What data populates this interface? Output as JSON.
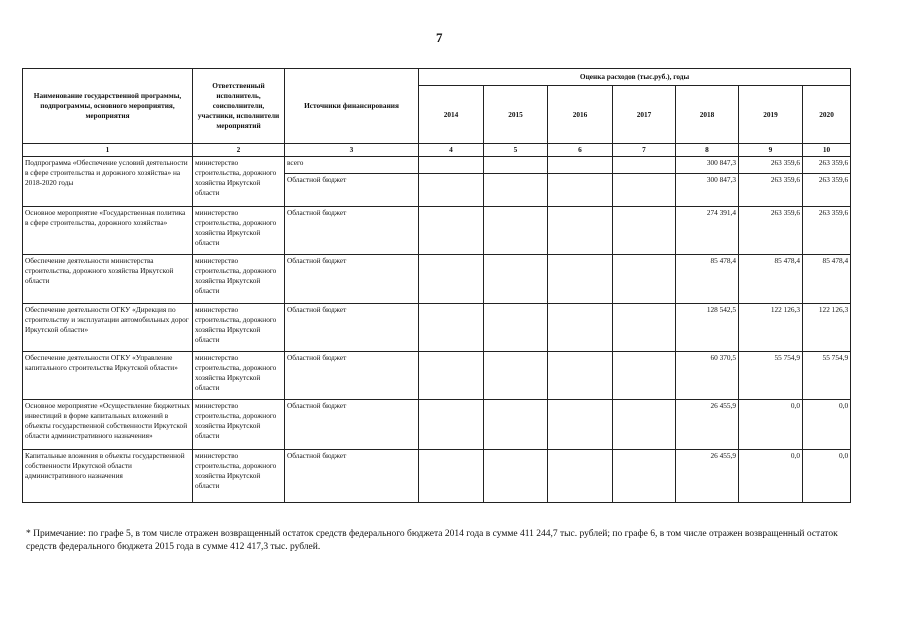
{
  "page_number": "7",
  "header": {
    "col1": "Наименование государственной программы, подпрограммы, основного мероприятия, мероприятия",
    "col2": "Ответственный исполнитель, соисполнители, участники, исполнители мероприятий",
    "col3": "Источники финансирования",
    "expenses": "Оценка расходов (тыс.руб.), годы",
    "years": [
      "2014",
      "2015",
      "2016",
      "2017",
      "2018",
      "2019",
      "2020"
    ],
    "numbers": [
      "1",
      "2",
      "3",
      "4",
      "5",
      "6",
      "7",
      "8",
      "9",
      "10"
    ]
  },
  "rows": [
    {
      "name": "Подпрограмма «Обеспечение условий деятельности в сфере строительства и дорожного хозяйства» на 2018-2020 годы",
      "executor": "министерство строительства, дорожного хозяйства Иркутской области",
      "sources": [
        {
          "source": "всего",
          "values": [
            "",
            "",
            "",
            "",
            "300 847,3",
            "263 359,6",
            "263 359,6"
          ]
        },
        {
          "source": "Областной бюджет",
          "values": [
            "",
            "",
            "",
            "",
            "300 847,3",
            "263 359,6",
            "263 359,6"
          ]
        }
      ]
    },
    {
      "name": "Основное мероприятие «Государственная политика в сфере строительства, дорожного хозяйства»",
      "executor": "министерство строительства, дорожного хозяйства Иркутской области",
      "sources": [
        {
          "source": "Областной бюджет",
          "values": [
            "",
            "",
            "",
            "",
            "274 391,4",
            "263 359,6",
            "263 359,6"
          ]
        }
      ]
    },
    {
      "name": "Обеспечение деятельности министерства строительства, дорожного хозяйства Иркутской области",
      "executor": "министерство строительства, дорожного хозяйства Иркутской области",
      "sources": [
        {
          "source": "Областной бюджет",
          "values": [
            "",
            "",
            "",
            "",
            "85 478,4",
            "85 478,4",
            "85 478,4"
          ]
        }
      ]
    },
    {
      "name": "Обеспечение деятельности ОГКУ «Дирекция по строительству и эксплуатации автомобильных дорог Иркутской области»",
      "executor": "министерство строительства, дорожного хозяйства Иркутской области",
      "sources": [
        {
          "source": "Областной бюджет",
          "values": [
            "",
            "",
            "",
            "",
            "128 542,5",
            "122 126,3",
            "122 126,3"
          ]
        }
      ]
    },
    {
      "name": "Обеспечение деятельности ОГКУ «Управление капитального строительства Иркутской области»",
      "executor": "министерство строительства, дорожного хозяйства Иркутской области",
      "sources": [
        {
          "source": "Областной бюджет",
          "values": [
            "",
            "",
            "",
            "",
            "60 370,5",
            "55 754,9",
            "55 754,9"
          ]
        }
      ]
    },
    {
      "name": "Основное мероприятие «Осуществление бюджетных инвестиций в форме капитальных вложений в объекты государственной собственности Иркутской области административного назначения»",
      "executor": "министерство строительства, дорожного хозяйства Иркутской области",
      "sources": [
        {
          "source": "Областной бюджет",
          "values": [
            "",
            "",
            "",
            "",
            "26 455,9",
            "0,0",
            "0,0"
          ]
        }
      ]
    },
    {
      "name": "Капитальные вложения в объекты государственной собственности Иркутской области административного назначения",
      "executor": "министерство строительства, дорожного хозяйства Иркутской области",
      "sources": [
        {
          "source": "Областной бюджет",
          "values": [
            "",
            "",
            "",
            "",
            "26 455,9",
            "0,0",
            "0,0"
          ]
        }
      ]
    }
  ],
  "note": "* Примечание: по графе 5, в том числе отражен возвращенный остаток средств федерального бюджета 2014 года в сумме 411 244,7 тыс. рублей; по графе 6, в том числе отражен возвращенный остаток средств федерального бюджета 2015 года в сумме 412 417,3 тыс. рублей."
}
